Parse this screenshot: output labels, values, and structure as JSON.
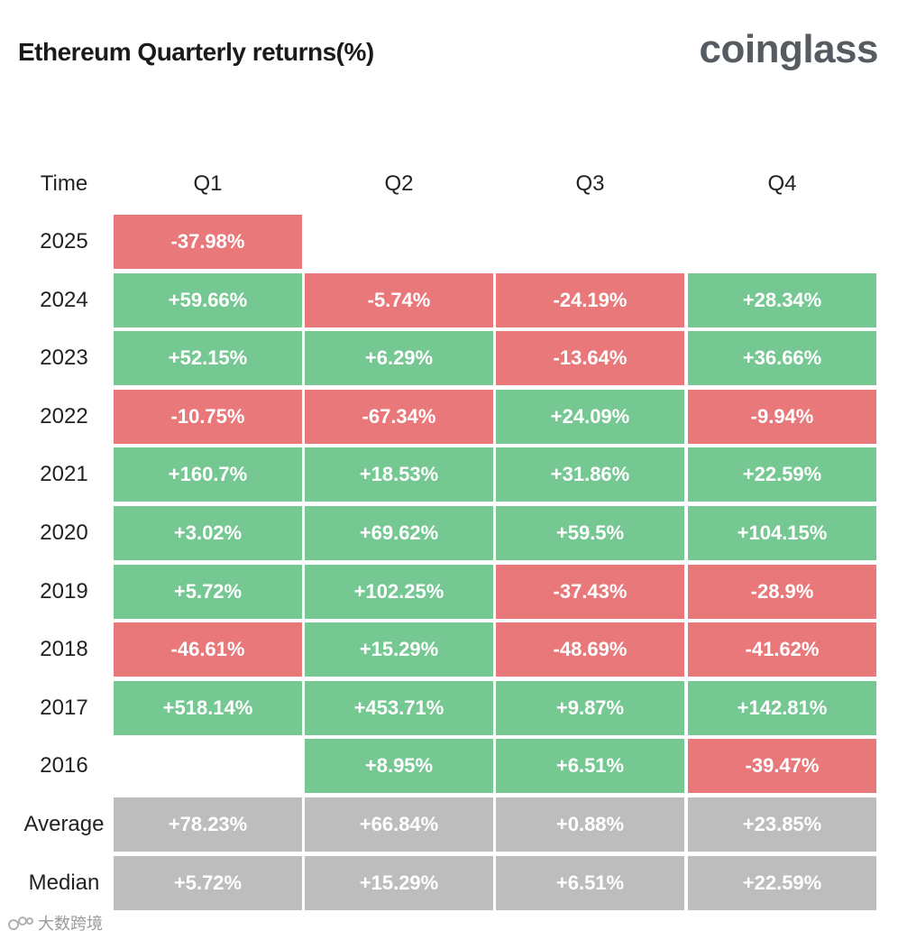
{
  "chart_data": {
    "type": "table",
    "title": "Ethereum Quarterly returns(%)",
    "brand": "coinglass",
    "watermark": "大数跨境",
    "columns": [
      "Time",
      "Q1",
      "Q2",
      "Q3",
      "Q4"
    ],
    "rows": [
      {
        "label": "2025",
        "values": [
          "-37.98%",
          null,
          null,
          null
        ],
        "numeric": [
          -37.98,
          null,
          null,
          null
        ]
      },
      {
        "label": "2024",
        "values": [
          "+59.66%",
          "-5.74%",
          "-24.19%",
          "+28.34%"
        ],
        "numeric": [
          59.66,
          -5.74,
          -24.19,
          28.34
        ]
      },
      {
        "label": "2023",
        "values": [
          "+52.15%",
          "+6.29%",
          "-13.64%",
          "+36.66%"
        ],
        "numeric": [
          52.15,
          6.29,
          -13.64,
          36.66
        ]
      },
      {
        "label": "2022",
        "values": [
          "-10.75%",
          "-67.34%",
          "+24.09%",
          "-9.94%"
        ],
        "numeric": [
          -10.75,
          -67.34,
          24.09,
          -9.94
        ]
      },
      {
        "label": "2021",
        "values": [
          "+160.7%",
          "+18.53%",
          "+31.86%",
          "+22.59%"
        ],
        "numeric": [
          160.7,
          18.53,
          31.86,
          22.59
        ]
      },
      {
        "label": "2020",
        "values": [
          "+3.02%",
          "+69.62%",
          "+59.5%",
          "+104.15%"
        ],
        "numeric": [
          3.02,
          69.62,
          59.5,
          104.15
        ]
      },
      {
        "label": "2019",
        "values": [
          "+5.72%",
          "+102.25%",
          "-37.43%",
          "-28.9%"
        ],
        "numeric": [
          5.72,
          102.25,
          -37.43,
          -28.9
        ]
      },
      {
        "label": "2018",
        "values": [
          "-46.61%",
          "+15.29%",
          "-48.69%",
          "-41.62%"
        ],
        "numeric": [
          -46.61,
          15.29,
          -48.69,
          -41.62
        ]
      },
      {
        "label": "2017",
        "values": [
          "+518.14%",
          "+453.71%",
          "+9.87%",
          "+142.81%"
        ],
        "numeric": [
          518.14,
          453.71,
          9.87,
          142.81
        ]
      },
      {
        "label": "2016",
        "values": [
          null,
          "+8.95%",
          "+6.51%",
          "-39.47%"
        ],
        "numeric": [
          null,
          8.95,
          6.51,
          -39.47
        ]
      }
    ],
    "summary": [
      {
        "label": "Average",
        "values": [
          "+78.23%",
          "+66.84%",
          "+0.88%",
          "+23.85%"
        ],
        "numeric": [
          78.23,
          66.84,
          0.88,
          23.85
        ]
      },
      {
        "label": "Median",
        "values": [
          "+5.72%",
          "+15.29%",
          "+6.51%",
          "+22.59%"
        ],
        "numeric": [
          5.72,
          15.29,
          6.51,
          22.59
        ]
      }
    ],
    "colors": {
      "positive": "#76c893",
      "negative": "#e8787a",
      "summary": "#bdbdbd",
      "text_on_cell": "#ffffff"
    }
  }
}
